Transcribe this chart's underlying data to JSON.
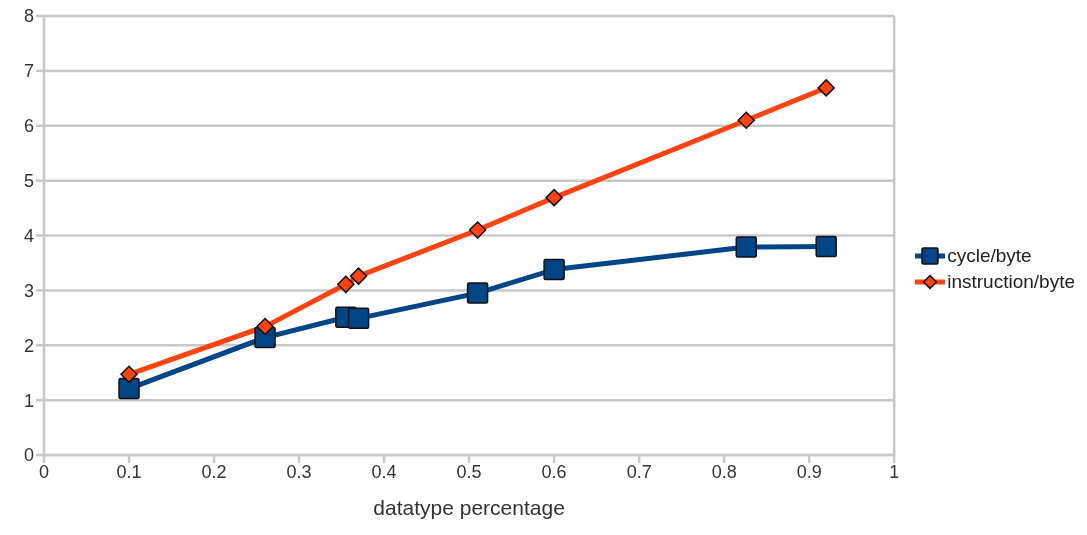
{
  "chart_data": {
    "type": "line",
    "xlabel": "datatype percentage",
    "x": [
      0.1,
      0.26,
      0.355,
      0.37,
      0.51,
      0.6,
      0.826,
      0.92
    ],
    "series": [
      {
        "name": "cycle/byte",
        "color": "#004586",
        "marker": "square",
        "values": [
          1.21,
          2.14,
          2.51,
          2.49,
          2.95,
          3.38,
          3.79,
          3.8
        ]
      },
      {
        "name": "instruction/byte",
        "color": "#ff420e",
        "marker": "diamond",
        "values": [
          1.47,
          2.34,
          3.11,
          3.26,
          4.1,
          4.69,
          6.1,
          6.69
        ]
      }
    ],
    "xlim": [
      0,
      1
    ],
    "xticks": [
      0,
      0.1,
      0.2,
      0.3,
      0.4,
      0.5,
      0.6,
      0.7,
      0.8,
      0.9,
      1
    ],
    "ylim": [
      0,
      8
    ],
    "yticks": [
      0,
      1,
      2,
      3,
      4,
      5,
      6,
      7,
      8
    ],
    "grid": "y",
    "legend": "right",
    "line_style": "solid"
  }
}
